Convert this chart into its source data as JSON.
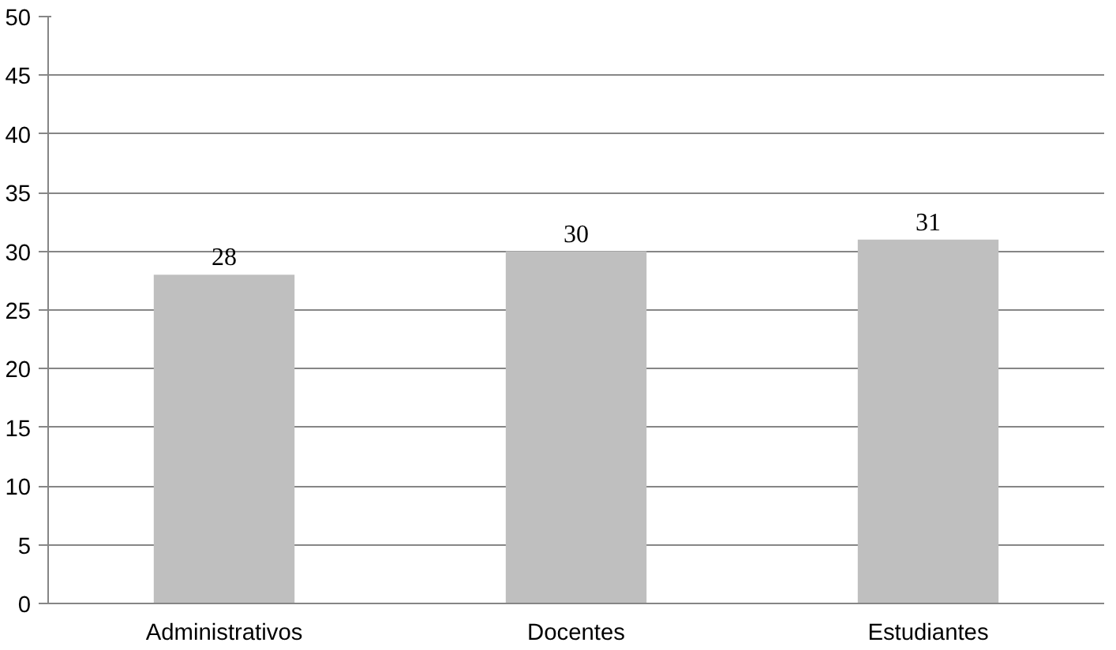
{
  "chart_data": {
    "type": "bar",
    "categories": [
      "Administrativos",
      "Docentes",
      "Estudiantes"
    ],
    "values": [
      28,
      30,
      31
    ],
    "color": "#bfbfbf",
    "ylim": [
      0,
      50
    ],
    "yticks": [
      0,
      5,
      10,
      15,
      20,
      25,
      30,
      35,
      40,
      45,
      50
    ],
    "grid": "y",
    "data_labels": true
  }
}
